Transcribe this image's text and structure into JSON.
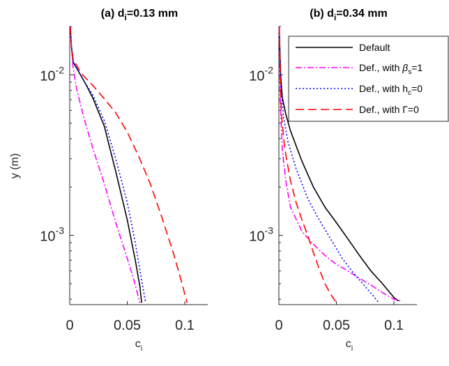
{
  "chart_data": [
    {
      "type": "line",
      "title": "(a) d",
      "title_sub": "i",
      "title_value": "=0.13 mm",
      "xlabel": "c",
      "xlabel_sub": "i",
      "ylabel": "y (m)",
      "xlim": [
        0,
        0.12
      ],
      "ylim": [
        0.00037,
        0.02
      ],
      "yscale": "log",
      "xticks": [
        0,
        0.05,
        0.1
      ],
      "xtick_labels": [
        "0",
        "0.05",
        "0.1"
      ],
      "yticks": [
        0.001,
        0.01
      ],
      "ytick_labels": [
        {
          "base": "10",
          "exp": "-3"
        },
        {
          "base": "10",
          "exp": "-2"
        }
      ],
      "grid": false,
      "series": [
        {
          "name": "Default",
          "color": "#000000",
          "dash": "solid",
          "points": [
            [
              0.0005,
              0.02
            ],
            [
              0.0015,
              0.015
            ],
            [
              0.003,
              0.012
            ],
            [
              0.006,
              0.011
            ],
            [
              0.013,
              0.009
            ],
            [
              0.02,
              0.0072
            ],
            [
              0.03,
              0.0048
            ],
            [
              0.04,
              0.0025
            ],
            [
              0.05,
              0.00125
            ],
            [
              0.057,
              0.0007
            ],
            [
              0.061,
              0.00048
            ],
            [
              0.0625,
              0.00038
            ]
          ]
        },
        {
          "name": "Def., with βs=1",
          "color": "#ff00ff",
          "dash": "dashdot",
          "points": [
            [
              0.0005,
              0.02
            ],
            [
              0.0015,
              0.015
            ],
            [
              0.003,
              0.011
            ],
            [
              0.006,
              0.0082
            ],
            [
              0.012,
              0.0055
            ],
            [
              0.02,
              0.0035
            ],
            [
              0.03,
              0.0021
            ],
            [
              0.04,
              0.0012
            ],
            [
              0.05,
              0.00072
            ],
            [
              0.056,
              0.00052
            ],
            [
              0.061,
              0.00038
            ]
          ]
        },
        {
          "name": "Def., with hc=0",
          "color": "#0000ff",
          "dash": "dotted",
          "points": [
            [
              0.0005,
              0.02
            ],
            [
              0.0015,
              0.015
            ],
            [
              0.003,
              0.012
            ],
            [
              0.006,
              0.011
            ],
            [
              0.013,
              0.009
            ],
            [
              0.02,
              0.0075
            ],
            [
              0.03,
              0.0052
            ],
            [
              0.04,
              0.003
            ],
            [
              0.05,
              0.0016
            ],
            [
              0.057,
              0.0009
            ],
            [
              0.062,
              0.00055
            ],
            [
              0.066,
              0.00038
            ]
          ]
        },
        {
          "name": "Def., with Γ=0",
          "color": "#ff0000",
          "dash": "dashed",
          "points": [
            [
              0.0005,
              0.02
            ],
            [
              0.0015,
              0.015
            ],
            [
              0.003,
              0.0125
            ],
            [
              0.01,
              0.0102
            ],
            [
              0.02,
              0.0086
            ],
            [
              0.03,
              0.0071
            ],
            [
              0.04,
              0.0058
            ],
            [
              0.05,
              0.0044
            ],
            [
              0.06,
              0.0031
            ],
            [
              0.07,
              0.0021
            ],
            [
              0.08,
              0.0013
            ],
            [
              0.09,
              0.00078
            ],
            [
              0.097,
              0.00052
            ],
            [
              0.102,
              0.00038
            ]
          ]
        }
      ]
    },
    {
      "type": "line",
      "title": "(b) d",
      "title_sub": "i",
      "title_value": "=0.34 mm",
      "xlabel": "c",
      "xlabel_sub": "i",
      "ylabel": "",
      "xlim": [
        0,
        0.12
      ],
      "ylim": [
        0.00037,
        0.02
      ],
      "yscale": "log",
      "xticks": [
        0,
        0.05,
        0.1
      ],
      "xtick_labels": [
        "0",
        "0.05",
        "0.1"
      ],
      "yticks": [
        0.001,
        0.01
      ],
      "ytick_labels": [
        {
          "base": "10",
          "exp": "-3"
        },
        {
          "base": "10",
          "exp": "-2"
        }
      ],
      "grid": false,
      "legend": {
        "location": "top-right",
        "entries": [
          {
            "text": "Default",
            "color": "#000000",
            "dash": "solid"
          },
          {
            "text": "Def., with ",
            "sym": "β",
            "sub": "s",
            "tail": "=1",
            "color": "#ff00ff",
            "dash": "dashdot"
          },
          {
            "text": "Def., with h",
            "sym": "",
            "sub": "c",
            "tail": "=0",
            "color": "#0000ff",
            "dash": "dotted"
          },
          {
            "text": "Def., with ",
            "sym": "Γ",
            "sub": "",
            "tail": "=0",
            "color": "#ff0000",
            "dash": "dashed"
          }
        ]
      },
      "series": [
        {
          "name": "Default",
          "color": "#000000",
          "dash": "solid",
          "points": [
            [
              0.0003,
              0.02
            ],
            [
              0.0015,
              0.01
            ],
            [
              0.003,
              0.0072
            ],
            [
              0.006,
              0.0057
            ],
            [
              0.01,
              0.0045
            ],
            [
              0.02,
              0.0029
            ],
            [
              0.03,
              0.002
            ],
            [
              0.04,
              0.0015
            ],
            [
              0.05,
              0.0012
            ],
            [
              0.06,
              0.00095
            ],
            [
              0.07,
              0.00075
            ],
            [
              0.08,
              0.0006
            ],
            [
              0.09,
              0.0005
            ],
            [
              0.1,
              0.00041
            ],
            [
              0.104,
              0.00039
            ]
          ]
        },
        {
          "name": "Def., with βs=1",
          "color": "#ff00ff",
          "dash": "dashdot",
          "points": [
            [
              0.0003,
              0.02
            ],
            [
              0.0012,
              0.007
            ],
            [
              0.003,
              0.0034
            ],
            [
              0.006,
              0.0022
            ],
            [
              0.01,
              0.0015
            ],
            [
              0.02,
              0.00106
            ],
            [
              0.03,
              0.00088
            ],
            [
              0.04,
              0.00075
            ],
            [
              0.05,
              0.00066
            ],
            [
              0.06,
              0.0006
            ],
            [
              0.07,
              0.00054
            ],
            [
              0.08,
              0.00049
            ],
            [
              0.09,
              0.00044
            ],
            [
              0.1,
              0.0004
            ],
            [
              0.106,
              0.00039
            ]
          ]
        },
        {
          "name": "Def., with hc=0",
          "color": "#0000ff",
          "dash": "dotted",
          "points": [
            [
              0.0003,
              0.02
            ],
            [
              0.0015,
              0.009
            ],
            [
              0.004,
              0.0055
            ],
            [
              0.008,
              0.0038
            ],
            [
              0.015,
              0.0026
            ],
            [
              0.025,
              0.0017
            ],
            [
              0.035,
              0.00125
            ],
            [
              0.045,
              0.00095
            ],
            [
              0.055,
              0.00072
            ],
            [
              0.065,
              0.00058
            ],
            [
              0.075,
              0.00048
            ],
            [
              0.082,
              0.00042
            ],
            [
              0.087,
              0.00038
            ]
          ]
        },
        {
          "name": "Def., with Γ=0",
          "color": "#ff0000",
          "dash": "dashed",
          "points": [
            [
              0.0003,
              0.02
            ],
            [
              0.002,
              0.006
            ],
            [
              0.005,
              0.0035
            ],
            [
              0.01,
              0.0022
            ],
            [
              0.015,
              0.0016
            ],
            [
              0.02,
              0.00125
            ],
            [
              0.025,
              0.001
            ],
            [
              0.03,
              0.00078
            ],
            [
              0.035,
              0.00062
            ],
            [
              0.04,
              0.0005
            ],
            [
              0.045,
              0.00043
            ],
            [
              0.05,
              0.00038
            ]
          ]
        }
      ]
    }
  ]
}
